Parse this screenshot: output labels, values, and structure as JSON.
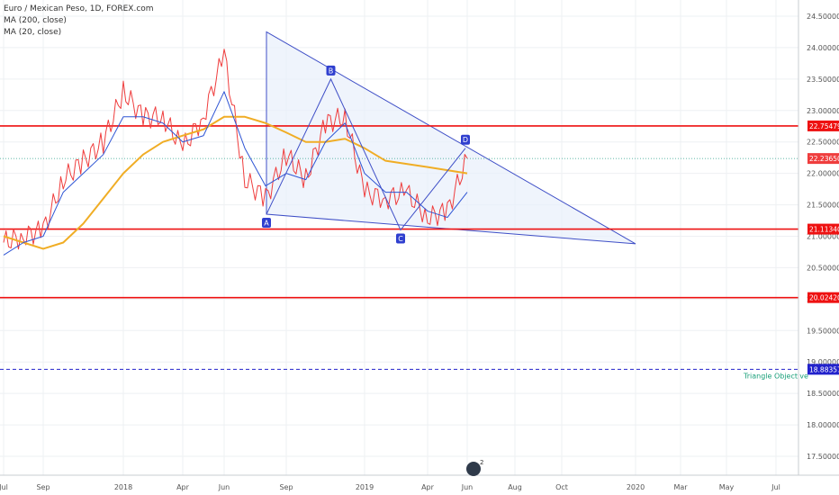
{
  "legend": {
    "title": "Euro / Mexican Peso, 1D, FOREX.com",
    "ma200": "MA (200, close)",
    "ma20": "MA (20, close)"
  },
  "colors": {
    "price_line": "#ef3d3d",
    "ma200": "#f0ad25",
    "ma20": "#2f55d4",
    "triangle_fill": "#e8f0fb",
    "triangle_stroke": "#3f4fc7",
    "level_red": "#ee1111",
    "objective": "#2222cc",
    "current_price_tag": "#ef3d3d",
    "objective_text": "#1aa07a"
  },
  "x_axis_labels": [
    "Jul",
    "Sep",
    "2018",
    "Apr",
    "Jun",
    "Sep",
    "2019",
    "Apr",
    "Jun",
    "Aug",
    "Oct",
    "2020",
    "Mar",
    "May",
    "Jul"
  ],
  "chart_data": {
    "type": "line",
    "title": "Euro / Mexican Peso, 1D, FOREX.com",
    "ylim": [
      17.3,
      24.6
    ],
    "y_ticks": [
      17.5,
      18.0,
      18.5,
      19.0,
      19.5,
      20.0,
      20.5,
      21.0,
      21.5,
      22.0,
      22.5,
      23.0,
      23.5,
      24.0,
      24.5
    ],
    "y_tick_labels": [
      "17.50000",
      "18.00000",
      "18.50000",
      "19.00000",
      "19.50000",
      "20.00000",
      "20.50000",
      "21.00000",
      "21.50000",
      "22.00000",
      "22.50000",
      "23.00000",
      "23.50000",
      "24.00000",
      "24.50000"
    ],
    "x": [
      "2017-07",
      "2017-08",
      "2017-09",
      "2017-10",
      "2017-11",
      "2017-12",
      "2018-01",
      "2018-02",
      "2018-03",
      "2018-04",
      "2018-05",
      "2018-06",
      "2018-07",
      "2018-08",
      "2018-09",
      "2018-10",
      "2018-11",
      "2018-12",
      "2019-01",
      "2019-02",
      "2019-03",
      "2019-04",
      "2019-05",
      "2019-06"
    ],
    "series": [
      {
        "name": "Euro / Mexican Peso",
        "values": [
          20.9,
          21.0,
          21.1,
          21.9,
          22.2,
          22.5,
          23.3,
          22.9,
          22.9,
          22.4,
          22.9,
          23.9,
          21.9,
          21.6,
          22.3,
          21.9,
          22.8,
          22.9,
          21.7,
          21.6,
          21.7,
          21.3,
          21.4,
          22.24
        ]
      },
      {
        "name": "MA (200, close)",
        "values": [
          21.0,
          20.9,
          20.8,
          20.9,
          21.2,
          21.6,
          22.0,
          22.3,
          22.5,
          22.6,
          22.7,
          22.9,
          22.9,
          22.8,
          22.65,
          22.5,
          22.5,
          22.55,
          22.4,
          22.2,
          22.15,
          22.1,
          22.05,
          22.0
        ]
      },
      {
        "name": "MA (20, close)",
        "values": [
          20.7,
          20.9,
          21.0,
          21.7,
          22.0,
          22.3,
          22.9,
          22.9,
          22.8,
          22.5,
          22.6,
          23.3,
          22.4,
          21.8,
          22.0,
          21.9,
          22.5,
          22.8,
          22.0,
          21.7,
          21.7,
          21.4,
          21.3,
          21.7
        ]
      }
    ],
    "horizontal_levels": [
      {
        "value": 22.75479,
        "label": "22.75479",
        "color": "#ee1111"
      },
      {
        "value": 21.1134,
        "label": "21.11340",
        "color": "#ee1111"
      },
      {
        "value": 20.0242,
        "label": "20.02420",
        "color": "#ee1111"
      },
      {
        "value": 18.88357,
        "label": "18.88357",
        "color": "#2222cc",
        "dashed": true
      }
    ],
    "current_price": {
      "value": 22.2365,
      "label": "22.23650"
    },
    "annotations": [
      {
        "label": "A",
        "date": "2018-07",
        "value": 21.35
      },
      {
        "label": "B",
        "date": "2018-11",
        "value": 23.5
      },
      {
        "label": "C",
        "date": "2019-04",
        "value": 21.1
      },
      {
        "label": "D",
        "date": "2019-06",
        "value": 22.4
      }
    ],
    "triangle_objective_text": "Triangle Objective"
  }
}
